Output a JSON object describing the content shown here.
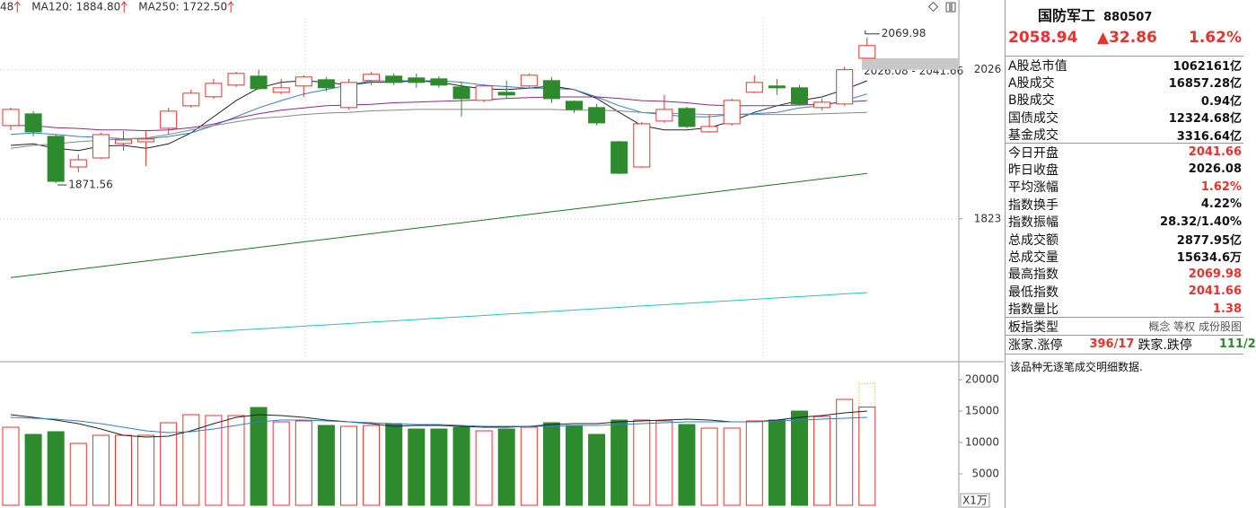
{
  "chart_data": [
    {
      "type": "candlestick",
      "legend": [
        {
          "text": "48",
          "color": "#333333"
        },
        {
          "text": "MA120: 1884.80",
          "color": "#1a7a1a"
        },
        {
          "text": "MA250: 1722.50",
          "color": "#22b8c4"
        }
      ],
      "up_color": "#e8322e",
      "down_color": "#2d8a2d",
      "open": [
        1950.0,
        1965.9,
        1935.3,
        1893.6,
        1905.9,
        1925.5,
        1927.9,
        1946.3,
        1976.9,
        1989.2,
        2005.1,
        2017.3,
        1995.3,
        2003.9,
        2012.4,
        1974.5,
        2011.2,
        2017.3,
        2014.9,
        2013.6,
        2002.6,
        1984.3,
        1995.3,
        2003.9,
        2011.2,
        1983.0,
        1974.5,
        1927.9,
        1893.6,
        1956.1,
        1973.2,
        1941.4,
        1952.4,
        1995.3,
        2003.9,
        2001.4,
        1974.5,
        1979.4,
        2041.66
      ],
      "high": [
        1974.5,
        1969.6,
        1937.7,
        1910.8,
        1940.2,
        1942.6,
        1942.6,
        1974.5,
        1998.9,
        2013.6,
        2023.4,
        2025.9,
        2013.6,
        2018.6,
        2016.1,
        2013.6,
        2023.4,
        2021.0,
        2021.0,
        2017.3,
        2008.7,
        2006.3,
        2011.2,
        2021.0,
        2016.1,
        1984.3,
        1979.4,
        1929.1,
        1954.9,
        1991.6,
        1975.7,
        1964.7,
        1986.7,
        2018.6,
        2013.6,
        2005.1,
        1986.7,
        2030.0,
        2069.98
      ],
      "low": [
        1943.8,
        1935.3,
        1871.56,
        1886.3,
        1904.6,
        1915.7,
        1894.8,
        1937.7,
        1974.5,
        1986.7,
        2002.6,
        1998.9,
        1992.8,
        1989.2,
        1996.5,
        1972.0,
        2005.1,
        2005.1,
        2001.4,
        2001.4,
        1962.2,
        1981.8,
        1986.7,
        2001.4,
        1980.6,
        1967.1,
        1950.0,
        1883.8,
        1892.4,
        1953.6,
        1946.3,
        1940.2,
        1950.0,
        1994.1,
        1991.6,
        1976.9,
        1970.8,
        1976.9,
        2041.66
      ],
      "close": [
        1972.0,
        1941.4,
        1874.0,
        1903.4,
        1937.7,
        1930.4,
        1931.6,
        1969.6,
        1994.1,
        2007.5,
        2021.0,
        2000.2,
        2001.4,
        2016.1,
        2001.4,
        2008.7,
        2019.8,
        2008.7,
        2008.7,
        2005.1,
        1986.7,
        2003.9,
        1991.6,
        2018.6,
        1986.7,
        1972.0,
        1953.6,
        1885.0,
        1952.4,
        1972.0,
        1948.7,
        1948.7,
        1984.3,
        2008.7,
        2001.4,
        1979.4,
        1981.8,
        2026.08,
        2058.94
      ],
      "lines": [
        {
          "color": "#222222",
          "values": [
            1923,
            1925,
            1919,
            1916,
            1922,
            1923,
            1919,
            1925,
            1940,
            1962,
            1984,
            2001,
            2009,
            2011,
            2009,
            2005,
            2009,
            2009,
            2011,
            2009,
            2004,
            2000,
            1999,
            2001,
            2004,
            1999,
            1987,
            1968,
            1950,
            1944,
            1944,
            1947,
            1956,
            1968,
            1977,
            1984,
            1989,
            1999,
            2011
          ]
        },
        {
          "color": "#2f7fd0",
          "values": [
            1938,
            1940,
            1938,
            1935,
            1934,
            1932,
            1932,
            1935,
            1940,
            1950,
            1962,
            1974,
            1984,
            1993,
            1999,
            2005,
            2011,
            2011,
            2011,
            2011,
            2009,
            2005,
            2003,
            2001,
            2001,
            1999,
            1989,
            1977,
            1968,
            1965,
            1962,
            1962,
            1965,
            1966,
            1968,
            1974,
            1977,
            1984,
            1993
          ]
        },
        {
          "color": "#8a2a8a",
          "values": [
            1950,
            1950,
            1947,
            1946,
            1944,
            1944,
            1943,
            1944,
            1947,
            1952,
            1960,
            1966,
            1971,
            1974,
            1977,
            1978,
            1979,
            1981,
            1982,
            1983,
            1984,
            1985,
            1987,
            1988,
            1989,
            1989,
            1989,
            1987,
            1984,
            1983,
            1981,
            1978,
            1977,
            1977,
            1977,
            1978,
            1979,
            1982,
            1984
          ]
        },
        {
          "color": "#888888",
          "values": [
            1919,
            1923,
            1925,
            1928,
            1930,
            1932,
            1933,
            1938,
            1944,
            1950,
            1955,
            1960,
            1962,
            1965,
            1967,
            1968,
            1970,
            1971,
            1972,
            1972,
            1972,
            1972,
            1972,
            1972,
            1972,
            1971,
            1971,
            1970,
            1968,
            1967,
            1966,
            1965,
            1965,
            1965,
            1965,
            1965,
            1966,
            1967,
            1968
          ]
        },
        {
          "color": "#1a7a1a",
          "values": [
            1743.0,
            1746.7,
            1750.5,
            1754.2,
            1757.9,
            1761.7,
            1765.4,
            1769.1,
            1772.9,
            1776.6,
            1780.3,
            1784.1,
            1787.8,
            1791.5,
            1795.2,
            1799.0,
            1802.7,
            1806.4,
            1810.2,
            1813.9,
            1817.6,
            1821.4,
            1825.1,
            1828.8,
            1832.6,
            1836.3,
            1840.0,
            1843.8,
            1847.5,
            1851.2,
            1855.0,
            1858.7,
            1862.4,
            1866.2,
            1869.9,
            1873.6,
            1877.4,
            1881.1,
            1884.8
          ]
        },
        {
          "color": "#22c4c4",
          "values": [
            null,
            null,
            null,
            null,
            null,
            null,
            null,
            null,
            1667.5,
            1669.3,
            1671.2,
            1673.0,
            1674.8,
            1676.7,
            1678.5,
            1680.3,
            1682.2,
            1684.0,
            1685.8,
            1687.7,
            1689.5,
            1691.3,
            1693.2,
            1695.0,
            1696.8,
            1698.7,
            1700.5,
            1702.3,
            1704.2,
            1706.0,
            1707.8,
            1709.7,
            1711.5,
            1713.3,
            1715.2,
            1717.0,
            1718.8,
            1720.7,
            1722.5
          ]
        }
      ],
      "gap": [
        2026.08,
        2041.66
      ],
      "annotations": [
        "2069.98",
        "1871.56",
        "2026.08 - 2041.66"
      ],
      "ylim": [
        1632,
        2121
      ],
      "yticks": [
        2026,
        1823
      ],
      "grid": true
    },
    {
      "type": "bar",
      "values": [
        12429,
        11286,
        11714,
        9857,
        11143,
        11143,
        11143,
        13143,
        14429,
        14286,
        14286,
        15571,
        13286,
        13429,
        12714,
        12571,
        12714,
        13000,
        12143,
        12143,
        12429,
        11857,
        12143,
        12429,
        13143,
        12714,
        11286,
        13571,
        13571,
        13429,
        12857,
        12286,
        12286,
        13429,
        13571,
        15000,
        14143,
        16857,
        15634.6
      ],
      "projected": 19400,
      "lines": [
        {
          "color": "#222222",
          "values": [
            14429,
            14000,
            13571,
            13000,
            12143,
            11143,
            10857,
            11000,
            11857,
            13000,
            14000,
            14429,
            14286,
            14000,
            13571,
            13286,
            13000,
            12571,
            12714,
            12714,
            12571,
            12429,
            12429,
            12571,
            12857,
            13000,
            13000,
            13286,
            13429,
            13571,
            13714,
            13571,
            13286,
            13286,
            13571,
            14000,
            14286,
            14714,
            15000
          ]
        },
        {
          "color": "#2f7fd0",
          "values": [
            14000,
            13857,
            13714,
            13429,
            13000,
            12429,
            11857,
            11571,
            11714,
            12143,
            12714,
            13286,
            13571,
            13571,
            13429,
            13286,
            13143,
            13000,
            12857,
            12857,
            12714,
            12571,
            12571,
            12571,
            12571,
            12714,
            12714,
            12857,
            13000,
            13143,
            13286,
            13286,
            13286,
            13286,
            13429,
            13571,
            13714,
            13857,
            14000
          ]
        }
      ],
      "unit": "X1万",
      "ylim": [
        0,
        22571
      ],
      "yticks": [
        20000,
        15000,
        10000,
        5000
      ]
    }
  ],
  "panel": {
    "title": "国防军工",
    "code": "880507",
    "price": "2058.94",
    "change": "▲32.86",
    "pct": "1.62%",
    "groups": [
      [
        {
          "label": "A股总市值",
          "value": "1062161亿"
        },
        {
          "label": "A股成交",
          "value": "16857.28亿"
        },
        {
          "label": "B股成交",
          "value": "0.94亿"
        },
        {
          "label": "国债成交",
          "value": "12324.68亿"
        },
        {
          "label": "基金成交",
          "value": "3316.64亿"
        }
      ],
      [
        {
          "label": "今日开盘",
          "value": "2041.66",
          "color": "#e8322e"
        },
        {
          "label": "昨日收盘",
          "value": "2026.08"
        },
        {
          "label": "平均涨幅",
          "value": "1.62%",
          "color": "#e8322e"
        },
        {
          "label": "指数换手",
          "value": "4.22%"
        },
        {
          "label": "指数振幅",
          "value": "28.32/1.40%"
        },
        {
          "label": "总成交额",
          "value": "2877.95亿"
        },
        {
          "label": "总成交量",
          "value": "15634.6万"
        },
        {
          "label": "最高指数",
          "value": "2069.98",
          "color": "#e8322e"
        },
        {
          "label": "最低指数",
          "value": "2041.66",
          "color": "#e8322e"
        },
        {
          "label": "指数量比",
          "value": "1.38",
          "color": "#e8322e"
        }
      ],
      [
        {
          "label": "板指类型",
          "value": "概念 等权 成份股图",
          "color": "#555555"
        }
      ]
    ],
    "breadth": {
      "label": "涨家.涨停",
      "value": "396/17",
      "label2": "跌家.跌停",
      "value2": "111/2"
    },
    "note": "该品种无逐笔成交明细数据."
  }
}
